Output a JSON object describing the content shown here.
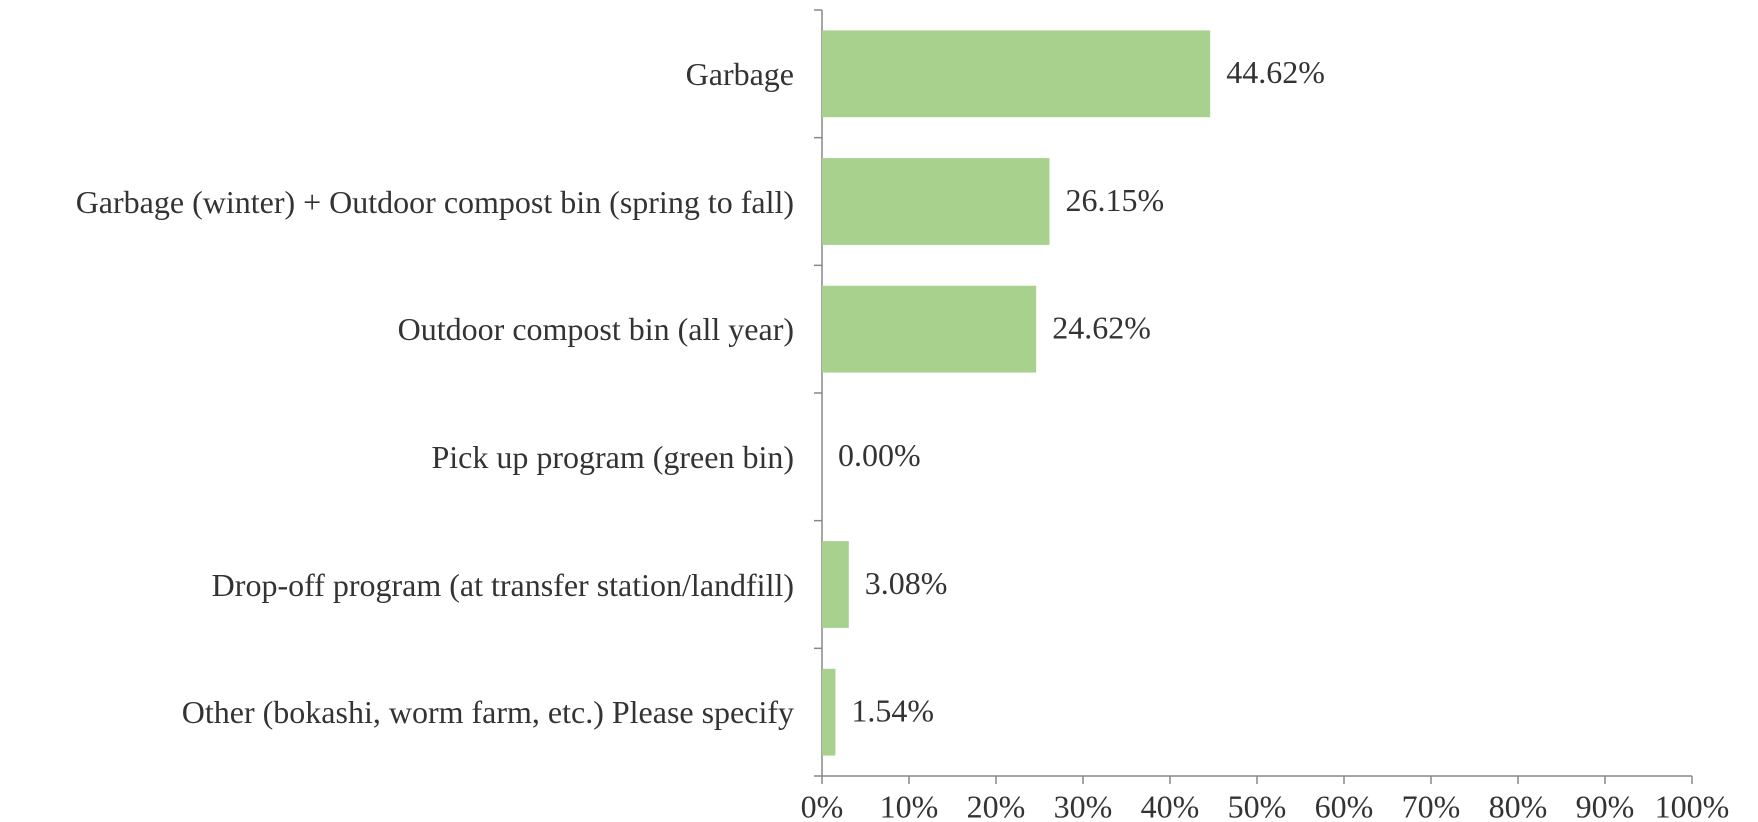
{
  "chart_data": {
    "type": "bar",
    "orientation": "horizontal",
    "categories": [
      "Garbage",
      "Garbage (winter) + Outdoor compost bin (spring to fall)",
      "Outdoor compost bin (all year)",
      "Pick up program (green bin)",
      "Drop-off program (at transfer station/landfill)",
      "Other (bokashi, worm farm, etc.) Please specify"
    ],
    "values": [
      44.62,
      26.15,
      24.62,
      0,
      3.08,
      1.54
    ],
    "value_labels": [
      "44.62%",
      "26.15%",
      "24.62%",
      "0.00%",
      "3.08%",
      "1.54%"
    ],
    "color": "#a9d18e",
    "xlim": [
      0,
      100
    ],
    "xticks": [
      {
        "value": 0,
        "label": "0%"
      },
      {
        "value": 10,
        "label": "10%"
      },
      {
        "value": 20,
        "label": "20%"
      },
      {
        "value": 30,
        "label": "30%"
      },
      {
        "value": 40,
        "label": "40%"
      },
      {
        "value": 50,
        "label": "50%"
      },
      {
        "value": 60,
        "label": "60%"
      },
      {
        "value": 70,
        "label": "70%"
      },
      {
        "value": 80,
        "label": "80%"
      },
      {
        "value": 90,
        "label": "90%"
      },
      {
        "value": 100,
        "label": "100%"
      }
    ],
    "grid": false
  }
}
